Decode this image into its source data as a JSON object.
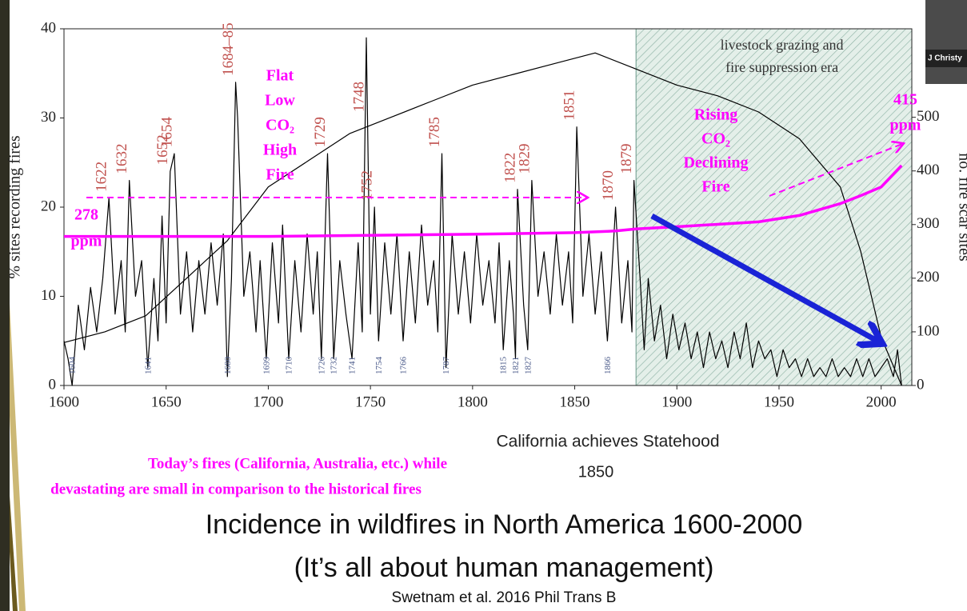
{
  "chart_data": {
    "type": "line",
    "ylabel": "% sites recording fires",
    "y2label": "no. fire scar sites",
    "xlim": [
      1600,
      2015
    ],
    "ylim": [
      0,
      40
    ],
    "y2lim": [
      0,
      665
    ],
    "xticks": [
      1600,
      1650,
      1700,
      1750,
      1800,
      1850,
      1900,
      1950,
      2000
    ],
    "yticks": [
      0,
      10,
      20,
      30,
      40
    ],
    "y2ticks": [
      0,
      100,
      200,
      300,
      400,
      500
    ],
    "shaded_region": [
      1880,
      2015
    ],
    "shaded_label": [
      "livestock grazing and",
      "fire suppression era"
    ],
    "series": [
      {
        "color": "#000000",
        "x": [
          1600,
          1602,
          1604,
          1607,
          1610,
          1613,
          1616,
          1619,
          1622,
          1625,
          1628,
          1630,
          1632,
          1635,
          1638,
          1641,
          1644,
          1646,
          1648,
          1650,
          1652,
          1654,
          1657,
          1660,
          1663,
          1666,
          1669,
          1672,
          1675,
          1678,
          1680,
          1682,
          1684,
          1685,
          1688,
          1691,
          1694,
          1696,
          1699,
          1702,
          1705,
          1707,
          1710,
          1713,
          1716,
          1719,
          1722,
          1724,
          1726,
          1729,
          1732,
          1735,
          1738,
          1741,
          1744,
          1746,
          1748,
          1750,
          1752,
          1754,
          1757,
          1760,
          1763,
          1766,
          1769,
          1772,
          1775,
          1778,
          1781,
          1783,
          1785,
          1787,
          1790,
          1793,
          1796,
          1799,
          1802,
          1805,
          1808,
          1811,
          1813,
          1815,
          1818,
          1820,
          1821,
          1822,
          1825,
          1827,
          1829,
          1832,
          1835,
          1838,
          1841,
          1844,
          1847,
          1849,
          1851,
          1854,
          1857,
          1860,
          1863,
          1866,
          1868,
          1870,
          1873,
          1876,
          1878,
          1879,
          1882,
          1884,
          1886,
          1889,
          1892,
          1895,
          1898,
          1901,
          1904,
          1907,
          1910,
          1913,
          1916,
          1919,
          1922,
          1925,
          1928,
          1931,
          1934,
          1937,
          1940,
          1943,
          1946,
          1949,
          1952,
          1955,
          1958,
          1961,
          1964,
          1967,
          1970,
          1973,
          1976,
          1979,
          1982,
          1985,
          1988,
          1991,
          1994,
          1997,
          2000,
          2003,
          2006,
          2008,
          2010
        ],
        "values": [
          5,
          3,
          0,
          9,
          4,
          11,
          6,
          12,
          21,
          8,
          14,
          6,
          23,
          10,
          14,
          2,
          12,
          5,
          19,
          7,
          24,
          26,
          8,
          15,
          6,
          14,
          8,
          16,
          9,
          17,
          1,
          12,
          34,
          30,
          10,
          15,
          6,
          14,
          3,
          16,
          7,
          18,
          3,
          14,
          6,
          17,
          8,
          15,
          3,
          26,
          3,
          14,
          8,
          3,
          16,
          6,
          39,
          8,
          20,
          5,
          16,
          8,
          17,
          5,
          15,
          7,
          18,
          9,
          14,
          6,
          26,
          2,
          17,
          8,
          15,
          7,
          17,
          9,
          14,
          7,
          16,
          4,
          14,
          8,
          3,
          22,
          9,
          4,
          23,
          10,
          15,
          8,
          17,
          9,
          15,
          7,
          29,
          10,
          17,
          8,
          15,
          5,
          12,
          20,
          7,
          14,
          6,
          23,
          12,
          4,
          12,
          5,
          9,
          3,
          8,
          4,
          7,
          3,
          6,
          2,
          6,
          3,
          5,
          2,
          6,
          3,
          7,
          2,
          5,
          3,
          4,
          1,
          4,
          2,
          3,
          1,
          3,
          1,
          2,
          1,
          3,
          1,
          2,
          1,
          3,
          1,
          3,
          1,
          2,
          3,
          1,
          4,
          0
        ]
      },
      {
        "color": "#000000",
        "axis": "y2",
        "x": [
          1600,
          1620,
          1640,
          1660,
          1680,
          1700,
          1720,
          1740,
          1760,
          1780,
          1800,
          1820,
          1840,
          1860,
          1880,
          1900,
          1920,
          1940,
          1960,
          1980,
          1990,
          2000,
          2010
        ],
        "values": [
          80,
          100,
          130,
          200,
          270,
          370,
          420,
          470,
          500,
          530,
          560,
          580,
          600,
          620,
          590,
          560,
          540,
          510,
          460,
          370,
          250,
          90,
          0
        ]
      },
      {
        "color": "#ff00ff",
        "axis": "y2",
        "x": [
          1600,
          1700,
          1800,
          1850,
          1870,
          1880,
          1900,
          1940,
          1960,
          1980,
          1990,
          2000,
          2010
        ],
        "values": [
          278,
          278,
          282,
          285,
          288,
          292,
          296,
          305,
          317,
          339,
          354,
          370,
          410
        ]
      }
    ],
    "peak_labels": [
      1622,
      1632,
      1652,
      1654,
      {
        "value": 1684,
        "label": "1684–85"
      },
      1729,
      1748,
      1752,
      1785,
      1822,
      1829,
      1851,
      1870,
      1879
    ],
    "low_labels": [
      1604,
      1641,
      1680,
      1699,
      1710,
      1726,
      1732,
      1741,
      1754,
      1766,
      1787,
      1815,
      1821,
      1827,
      1866
    ],
    "annotations": [
      {
        "lines": [
          "Flat",
          "Low",
          "CO₂",
          "High",
          "Fire"
        ]
      },
      {
        "lines": [
          "Rising",
          "CO₂",
          "Declining",
          "Fire"
        ]
      },
      {
        "lines": [
          "278",
          "ppm"
        ]
      },
      {
        "lines": [
          "415",
          "ppm"
        ]
      }
    ]
  },
  "caption": {
    "statehood": "California achieves Statehood",
    "statehood_year": "1850",
    "note": [
      "Today’s fires (California, Australia, etc.) while",
      "devastating are small in comparison to the historical fires"
    ],
    "title": "Incidence in wildfires in North America 1600-2000",
    "subtitle": "(It’s all about human management)",
    "source": "Swetnam et al. 2016 Phil Trans B"
  },
  "overlay": {
    "name": "J Christy"
  }
}
